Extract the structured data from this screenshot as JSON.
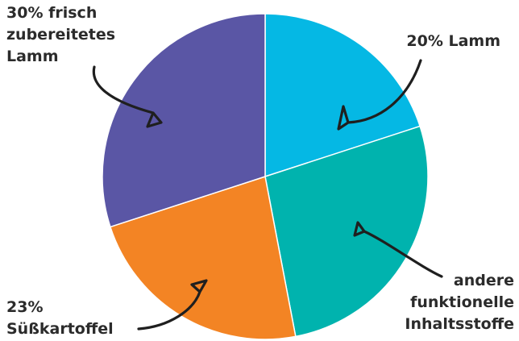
{
  "chart_data": {
    "type": "pie",
    "start_angle": "12 o'clock",
    "direction": "clockwise",
    "slices": [
      {
        "name": "Lamm",
        "value": 20,
        "label": [
          "20% Lamm"
        ],
        "color": "#05b8e4"
      },
      {
        "name": "andere funktionelle Inhaltsstoffe",
        "value": 27,
        "label": [
          "andere",
          "funktionelle",
          "Inhaltsstoffe"
        ],
        "color": "#00b3ae"
      },
      {
        "name": "Süßkartoffel",
        "value": 23,
        "label": [
          "23%",
          "Süßkartoffel"
        ],
        "color": "#f38424"
      },
      {
        "name": "frisch zubereitetes Lamm",
        "value": 30,
        "label": [
          "30% frisch",
          "zubereitetes",
          "Lamm"
        ],
        "color": "#5a56a5"
      }
    ],
    "legend": "none"
  }
}
